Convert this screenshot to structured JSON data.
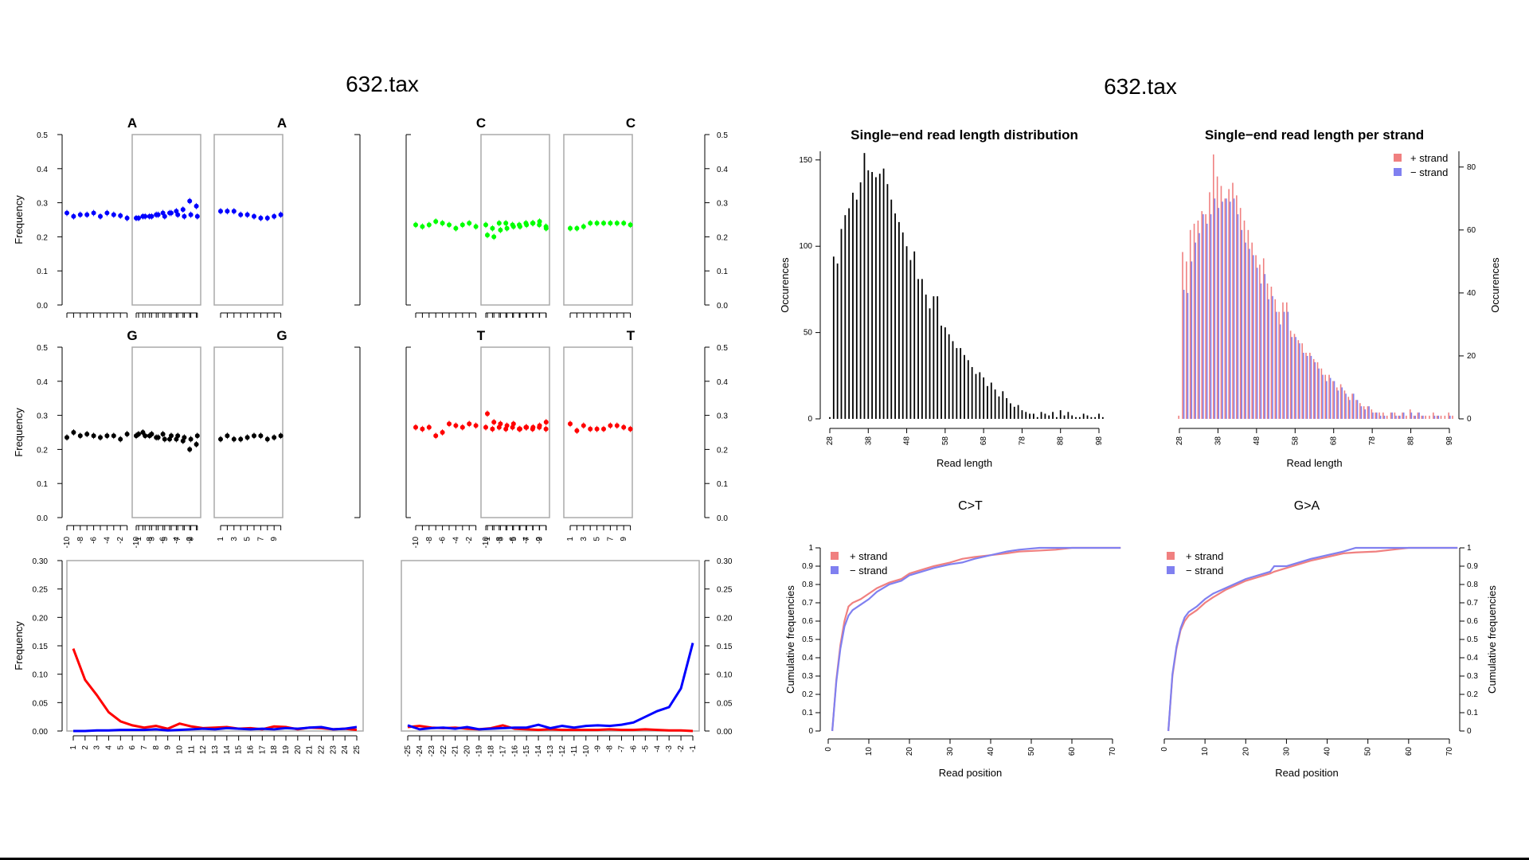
{
  "titles": {
    "left": "632.tax",
    "right": "632.tax"
  },
  "colors": {
    "A": "#0000ff",
    "C": "#00ff00",
    "G": "#000000",
    "T": "#ff0000",
    "plus": "#f08080",
    "minus": "#8080f0",
    "bar": "#000000"
  },
  "base_composition": {
    "type": "scatter",
    "ylabel": "Frequency",
    "ylim": [
      0,
      0.5
    ],
    "yticks": [
      "0.0",
      "0.1",
      "0.2",
      "0.3",
      "0.4",
      "0.5"
    ],
    "xticks_5p": [
      "-10",
      "-8",
      "-6",
      "-4",
      "-2",
      "1",
      "3",
      "5",
      "7",
      "9"
    ],
    "xticks_3p": [
      "-10",
      "-8",
      "-6",
      "-4",
      "-2",
      "1",
      "3",
      "5",
      "7",
      "9"
    ],
    "panels": [
      {
        "base": "A",
        "side": "5p",
        "left": [
          0.27,
          0.26,
          0.265,
          0.265,
          0.27,
          0.26,
          0.27,
          0.265,
          0.262,
          0.255
        ],
        "right": [
          0.255,
          0.26,
          0.26,
          0.265,
          0.26,
          0.27,
          0.265,
          0.26,
          0.265,
          0.26
        ]
      },
      {
        "base": "A",
        "side": "3p",
        "left": [
          0.255,
          0.26,
          0.26,
          0.265,
          0.27,
          0.27,
          0.275,
          0.28,
          0.305,
          0.29
        ],
        "right": [
          0.275,
          0.275,
          0.275,
          0.265,
          0.265,
          0.26,
          0.255,
          0.255,
          0.26,
          0.265
        ]
      },
      {
        "base": "C",
        "side": "5p",
        "left": [
          0.235,
          0.23,
          0.235,
          0.245,
          0.24,
          0.235,
          0.225,
          0.235,
          0.24,
          0.23
        ],
        "right": [
          0.205,
          0.2,
          0.22,
          0.225,
          0.23,
          0.23,
          0.235,
          0.24,
          0.245,
          0.225
        ]
      },
      {
        "base": "C",
        "side": "3p",
        "left": [
          0.235,
          0.225,
          0.24,
          0.24,
          0.235,
          0.235,
          0.24,
          0.24,
          0.235,
          0.23
        ],
        "right": [
          0.225,
          0.225,
          0.23,
          0.24,
          0.24,
          0.24,
          0.24,
          0.24,
          0.24,
          0.235
        ]
      },
      {
        "base": "G",
        "side": "5p",
        "left": [
          0.235,
          0.25,
          0.24,
          0.245,
          0.24,
          0.235,
          0.24,
          0.24,
          0.23,
          0.245
        ],
        "right": [
          0.245,
          0.24,
          0.245,
          0.235,
          0.23,
          0.24,
          0.24,
          0.235,
          0.23,
          0.24
        ]
      },
      {
        "base": "G",
        "side": "3p",
        "left": [
          0.24,
          0.25,
          0.24,
          0.235,
          0.245,
          0.23,
          0.23,
          0.225,
          0.2,
          0.215
        ],
        "right": [
          0.23,
          0.24,
          0.23,
          0.23,
          0.235,
          0.24,
          0.24,
          0.23,
          0.235,
          0.24
        ]
      },
      {
        "base": "T",
        "side": "5p",
        "left": [
          0.265,
          0.26,
          0.265,
          0.24,
          0.25,
          0.275,
          0.27,
          0.265,
          0.275,
          0.27
        ],
        "right": [
          0.305,
          0.28,
          0.275,
          0.27,
          0.275,
          0.26,
          0.265,
          0.265,
          0.27,
          0.28
        ]
      },
      {
        "base": "T",
        "side": "3p",
        "left": [
          0.265,
          0.26,
          0.265,
          0.26,
          0.265,
          0.26,
          0.265,
          0.26,
          0.265,
          0.26
        ],
        "right": [
          0.275,
          0.255,
          0.27,
          0.26,
          0.26,
          0.26,
          0.27,
          0.27,
          0.265,
          0.26
        ]
      }
    ]
  },
  "misincorporation": {
    "type": "line",
    "ylabel": "Frequency",
    "ylim": [
      0,
      0.3
    ],
    "yticks": [
      "0.00",
      "0.05",
      "0.10",
      "0.15",
      "0.20",
      "0.25",
      "0.30"
    ],
    "left": {
      "x": [
        "1",
        "2",
        "3",
        "4",
        "5",
        "6",
        "7",
        "8",
        "9",
        "10",
        "11",
        "12",
        "13",
        "14",
        "15",
        "16",
        "17",
        "18",
        "19",
        "20",
        "21",
        "22",
        "23",
        "24",
        "25"
      ],
      "series": [
        {
          "color": "red",
          "values": [
            0.145,
            0.09,
            0.063,
            0.033,
            0.017,
            0.01,
            0.006,
            0.009,
            0.004,
            0.013,
            0.008,
            0.005,
            0.006,
            0.007,
            0.004,
            0.005,
            0.003,
            0.008,
            0.007,
            0.003,
            0.006,
            0.005,
            0.003,
            0.004,
            0.002
          ]
        },
        {
          "color": "blue",
          "values": [
            0.0,
            0.0,
            0.001,
            0.001,
            0.002,
            0.002,
            0.002,
            0.003,
            0.001,
            0.002,
            0.003,
            0.004,
            0.003,
            0.005,
            0.004,
            0.003,
            0.004,
            0.003,
            0.005,
            0.004,
            0.006,
            0.007,
            0.003,
            0.004,
            0.007
          ]
        }
      ]
    },
    "right": {
      "x": [
        "-25",
        "-24",
        "-23",
        "-22",
        "-21",
        "-20",
        "-19",
        "-18",
        "-17",
        "-16",
        "-15",
        "-14",
        "-13",
        "-12",
        "-11",
        "-10",
        "-9",
        "-8",
        "-7",
        "-6",
        "-5",
        "-4",
        "-3",
        "-2",
        "-1"
      ],
      "series": [
        {
          "color": "red",
          "values": [
            0.007,
            0.009,
            0.006,
            0.005,
            0.006,
            0.004,
            0.003,
            0.005,
            0.01,
            0.004,
            0.003,
            0.002,
            0.003,
            0.002,
            0.002,
            0.002,
            0.002,
            0.003,
            0.002,
            0.002,
            0.003,
            0.002,
            0.001,
            0.001,
            0.0
          ]
        },
        {
          "color": "blue",
          "values": [
            0.01,
            0.003,
            0.005,
            0.006,
            0.004,
            0.007,
            0.003,
            0.004,
            0.005,
            0.006,
            0.006,
            0.011,
            0.005,
            0.009,
            0.006,
            0.009,
            0.01,
            0.009,
            0.011,
            0.015,
            0.025,
            0.035,
            0.042,
            0.075,
            0.155
          ]
        }
      ]
    }
  },
  "read_length": {
    "type": "bar",
    "title": "Single−end read length distribution",
    "xlabel": "Read length",
    "ylabel": "Occurences",
    "xticks": [
      "28",
      "38",
      "48",
      "58",
      "68",
      "78",
      "88",
      "98"
    ],
    "yticks": [
      "0",
      "50",
      "100",
      "150"
    ],
    "ylim": [
      0,
      155
    ],
    "x_start": 28,
    "values": [
      1,
      94,
      90,
      110,
      118,
      122,
      131,
      127,
      137,
      154,
      144,
      143,
      140,
      142,
      145,
      136,
      127,
      119,
      114,
      108,
      100,
      92,
      97,
      81,
      81,
      72,
      64,
      71,
      71,
      54,
      53,
      49,
      45,
      41,
      41,
      37,
      34,
      30,
      26,
      27,
      24,
      19,
      21,
      17,
      13,
      16,
      12,
      9,
      7,
      8,
      5,
      4,
      3,
      3,
      1,
      4,
      3,
      2,
      4,
      1,
      5,
      2,
      4,
      2,
      1,
      1,
      3,
      2,
      1,
      1,
      3,
      1
    ]
  },
  "strand_length": {
    "type": "bar",
    "title": "Single−end read length per strand",
    "xlabel": "Read length",
    "ylabel": "Occurences",
    "xticks": [
      "28",
      "38",
      "48",
      "58",
      "68",
      "78",
      "88",
      "98"
    ],
    "yticks": [
      "0",
      "20",
      "40",
      "60",
      "80"
    ],
    "ylim": [
      0,
      85
    ],
    "legend": [
      "+ strand",
      "− strand"
    ],
    "x_start": 28,
    "plus": [
      1,
      53,
      50,
      60,
      62,
      63,
      66,
      65,
      72,
      84,
      77,
      74,
      70,
      73,
      75,
      71,
      67,
      63,
      60,
      56,
      52,
      49,
      51,
      43,
      42,
      38,
      34,
      37,
      37,
      28,
      27,
      25,
      24,
      21,
      21,
      19,
      18,
      16,
      14,
      14,
      12,
      10,
      11,
      9,
      7,
      8,
      6,
      5,
      4,
      4,
      3,
      2,
      2,
      2,
      1,
      2,
      2,
      1,
      2,
      1,
      3,
      1,
      2,
      1,
      1,
      1,
      2,
      1,
      1,
      1,
      2,
      1
    ],
    "minus": [
      0,
      41,
      40,
      50,
      56,
      59,
      65,
      62,
      65,
      70,
      67,
      69,
      70,
      69,
      70,
      65,
      60,
      56,
      54,
      52,
      48,
      43,
      46,
      38,
      39,
      34,
      30,
      34,
      34,
      26,
      26,
      24,
      21,
      20,
      20,
      18,
      16,
      14,
      12,
      13,
      12,
      9,
      10,
      8,
      6,
      8,
      6,
      4,
      3,
      4,
      2,
      2,
      1,
      1,
      0,
      2,
      1,
      1,
      2,
      0,
      2,
      1,
      2,
      1,
      0,
      0,
      1,
      1,
      0,
      0,
      1,
      0
    ]
  },
  "cumulative": {
    "type": "line",
    "xlabel": "Read position",
    "ylabel": "Cumulative frequencies",
    "xticks": [
      "0",
      "10",
      "20",
      "30",
      "40",
      "50",
      "60",
      "70"
    ],
    "yticks": [
      "0",
      "0.1",
      "0.2",
      "0.3",
      "0.4",
      "0.5",
      "0.6",
      "0.7",
      "0.8",
      "0.9",
      "1"
    ],
    "legend": [
      "+ strand",
      "− strand"
    ],
    "panels": [
      {
        "title": "C>T",
        "x": [
          1,
          2,
          3,
          4,
          5,
          6,
          8,
          10,
          12,
          15,
          18,
          20,
          23,
          26,
          30,
          33,
          36,
          40,
          44,
          47,
          52,
          56,
          60,
          65,
          72
        ],
        "plus": [
          0,
          0.28,
          0.47,
          0.6,
          0.68,
          0.7,
          0.72,
          0.75,
          0.78,
          0.81,
          0.83,
          0.86,
          0.88,
          0.9,
          0.92,
          0.94,
          0.95,
          0.96,
          0.97,
          0.98,
          0.985,
          0.99,
          1,
          1,
          1
        ],
        "minus": [
          0,
          0.27,
          0.45,
          0.57,
          0.63,
          0.66,
          0.69,
          0.72,
          0.76,
          0.8,
          0.82,
          0.85,
          0.87,
          0.89,
          0.91,
          0.92,
          0.94,
          0.96,
          0.98,
          0.99,
          1,
          1,
          1,
          1,
          1
        ]
      },
      {
        "title": "G>A",
        "x": [
          1,
          2,
          3,
          4,
          5,
          6,
          8,
          10,
          12,
          15,
          18,
          20,
          23,
          26,
          27,
          30,
          33,
          36,
          40,
          44,
          47,
          52,
          56,
          60,
          65,
          72
        ],
        "plus": [
          0,
          0.3,
          0.45,
          0.55,
          0.6,
          0.63,
          0.66,
          0.7,
          0.73,
          0.77,
          0.8,
          0.82,
          0.84,
          0.86,
          0.87,
          0.89,
          0.91,
          0.93,
          0.95,
          0.97,
          0.975,
          0.98,
          0.99,
          1,
          1,
          1
        ],
        "minus": [
          0,
          0.31,
          0.46,
          0.56,
          0.62,
          0.65,
          0.68,
          0.72,
          0.75,
          0.78,
          0.81,
          0.83,
          0.85,
          0.87,
          0.9,
          0.9,
          0.92,
          0.94,
          0.96,
          0.98,
          1,
          1,
          1,
          1,
          1,
          1
        ]
      }
    ]
  }
}
